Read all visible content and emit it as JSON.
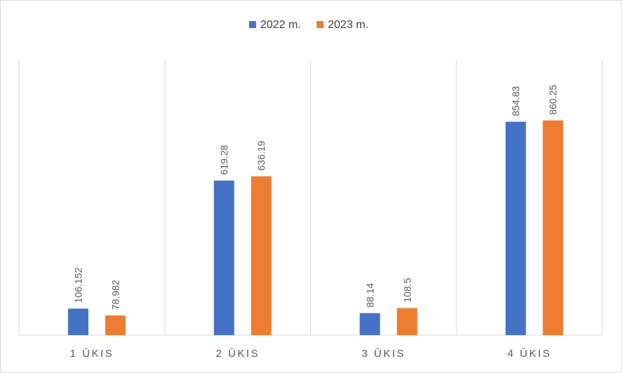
{
  "chart_data": {
    "type": "bar",
    "categories": [
      "1 ŪKIS",
      "2 ŪKIS",
      "3 ŪKIS",
      "4 ŪKIS"
    ],
    "series": [
      {
        "name": "2022 m.",
        "values": [
          106.152,
          619.28,
          88.14,
          854.83
        ],
        "labels": [
          "106.152",
          "619.28",
          "88.14",
          "854.83"
        ],
        "color": "#4472C4"
      },
      {
        "name": "2023 m.",
        "values": [
          78.982,
          636.19,
          108.5,
          860.25
        ],
        "labels": [
          "78.982",
          "636.19",
          "108.5",
          "860.25"
        ],
        "color": "#ED7D31"
      }
    ],
    "title": "",
    "xlabel": "",
    "ylabel": "",
    "ylim": [
      0,
      1000
    ],
    "grid": "vertical category separators",
    "legend": "top-center",
    "data_labels": "rotated vertical above bars"
  }
}
